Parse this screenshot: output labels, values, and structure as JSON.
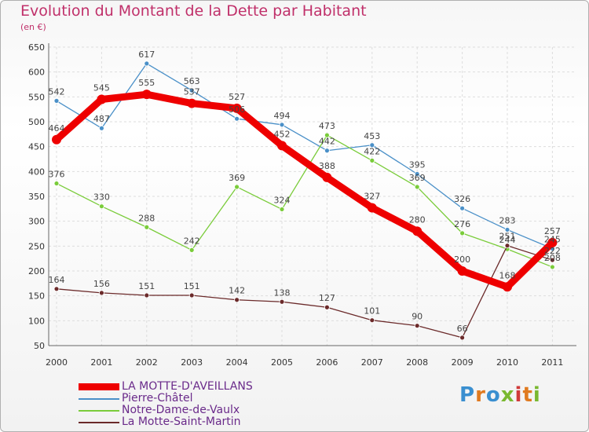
{
  "title": "Evolution du Montant de la Dette par Habitant",
  "unit": "(en €)",
  "logo": "Proxiti",
  "chart_data": {
    "type": "line",
    "x": [
      "2000",
      "2001",
      "2002",
      "2003",
      "2004",
      "2005",
      "2006",
      "2007",
      "2008",
      "2009",
      "2010",
      "2011"
    ],
    "ylim": [
      50,
      650
    ],
    "yticks": [
      50,
      100,
      150,
      200,
      250,
      300,
      350,
      400,
      450,
      500,
      550,
      600,
      650
    ],
    "grid": true,
    "legend_placement": "bottom-left",
    "series": [
      {
        "name": "Pierre-Châtel",
        "color": "#4a90c8",
        "values": [
          542,
          487,
          617,
          563,
          506,
          494,
          442,
          453,
          395,
          326,
          283,
          245
        ]
      },
      {
        "name": "Notre-Dame-de-Vaulx",
        "color": "#7acc3a",
        "values": [
          376,
          330,
          288,
          242,
          369,
          324,
          473,
          422,
          369,
          276,
          244,
          208
        ]
      },
      {
        "name": "La Motte-Saint-Martin",
        "color": "#6b2a2a",
        "values": [
          164,
          156,
          151,
          151,
          142,
          138,
          127,
          101,
          90,
          66,
          251,
          222
        ]
      },
      {
        "name": "LA MOTTE-D'AVEILLANS",
        "color": "#ee0000",
        "values": [
          464,
          545,
          555,
          537,
          527,
          452,
          388,
          327,
          280,
          200,
          168,
          257
        ]
      }
    ]
  }
}
